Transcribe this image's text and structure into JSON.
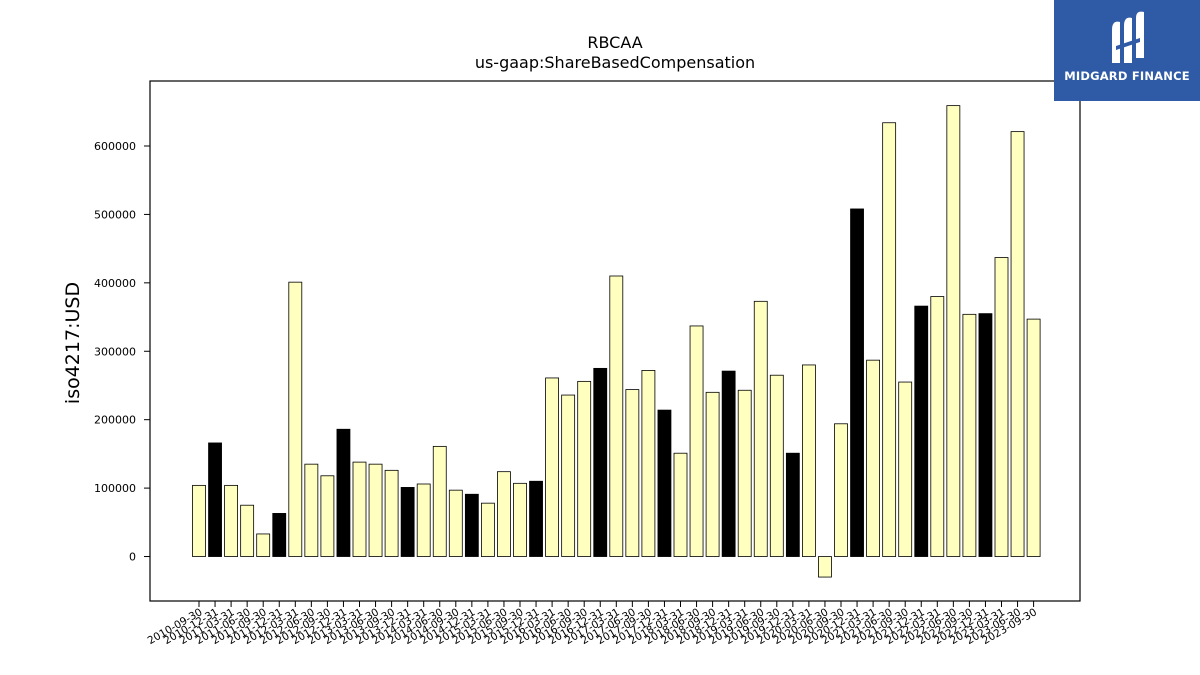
{
  "logo": {
    "text": "MIDGARD FINANCE",
    "icon": "midgard-m-icon"
  },
  "chart_data": {
    "type": "bar",
    "title": "RBCAA",
    "subtitle": "us-gaap:ShareBasedCompensation",
    "ylabel": "iso4217:USD",
    "xlabel": "",
    "ylim": [
      -65000,
      695000
    ],
    "yticks": [
      0,
      100000,
      200000,
      300000,
      400000,
      500000,
      600000
    ],
    "grid": false,
    "colors": {
      "light": "#ffffbf",
      "dark": "#000000",
      "edge": "#000000"
    },
    "categories": [
      "2010-09-30",
      "2010-12-31",
      "2011-03-31",
      "2011-06-30",
      "2011-09-30",
      "2011-12-31",
      "2012-03-31",
      "2012-06-30",
      "2012-09-30",
      "2012-12-31",
      "2013-03-31",
      "2013-06-30",
      "2013-09-30",
      "2013-12-31",
      "2014-03-31",
      "2014-06-30",
      "2014-09-30",
      "2014-12-31",
      "2015-03-31",
      "2015-06-30",
      "2015-09-30",
      "2015-12-31",
      "2016-03-31",
      "2016-06-30",
      "2016-09-30",
      "2016-12-31",
      "2017-03-31",
      "2017-06-30",
      "2017-09-30",
      "2017-12-31",
      "2018-03-31",
      "2018-06-30",
      "2018-09-30",
      "2018-12-31",
      "2019-03-31",
      "2019-06-30",
      "2019-09-30",
      "2019-12-31",
      "2020-03-31",
      "2020-06-30",
      "2020-09-30",
      "2020-12-31",
      "2021-03-31",
      "2021-06-30",
      "2021-09-30",
      "2021-12-31",
      "2022-03-31",
      "2022-06-30",
      "2022-09-30",
      "2022-12-31",
      "2023-03-31",
      "2023-06-30",
      "2023-09-30"
    ],
    "values": [
      104000,
      166000,
      104000,
      75000,
      33000,
      63000,
      401000,
      135000,
      118000,
      186000,
      138000,
      135000,
      126000,
      101000,
      106000,
      161000,
      97000,
      91000,
      78000,
      124000,
      107000,
      110000,
      261000,
      236000,
      256000,
      275000,
      410000,
      244000,
      272000,
      214000,
      151000,
      337000,
      240000,
      271000,
      243000,
      373000,
      265000,
      151000,
      280000,
      -30000,
      194000,
      508000,
      287000,
      634000,
      255000,
      366000,
      380000,
      659000,
      354000,
      355000,
      437000,
      621000,
      347000
    ],
    "dark": [
      false,
      true,
      false,
      false,
      false,
      true,
      false,
      false,
      false,
      true,
      false,
      false,
      false,
      true,
      false,
      false,
      false,
      true,
      false,
      false,
      false,
      true,
      false,
      false,
      false,
      true,
      false,
      false,
      false,
      true,
      false,
      false,
      false,
      true,
      false,
      false,
      false,
      true,
      false,
      false,
      false,
      true,
      false,
      false,
      false,
      true,
      false,
      false,
      false,
      true,
      false,
      false,
      false
    ]
  }
}
